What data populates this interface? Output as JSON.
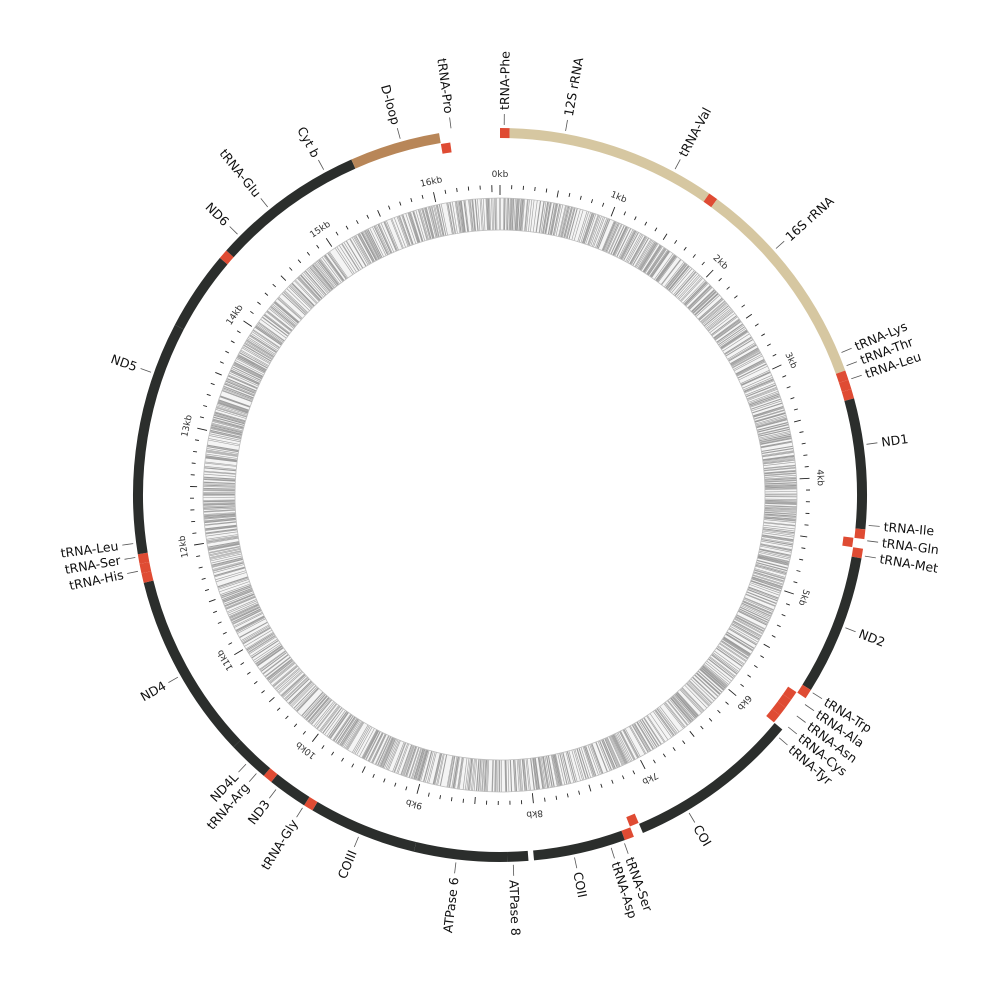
{
  "genome": {
    "length_kb": 16.57,
    "colors": {
      "protein": "#2b2e2c",
      "rrna": "#d6c7a1",
      "dloop": "#b88658",
      "trna": "#df4b33",
      "leader": "#555555",
      "tick": "#222222",
      "track": "#bdbdbd"
    },
    "tick_labels": [
      "0kb",
      "1kb",
      "2kb",
      "3kb",
      "4kb",
      "5kb",
      "6kb",
      "7kb",
      "8kb",
      "9kb",
      "10kb",
      "11kb",
      "12kb",
      "13kb",
      "14kb",
      "15kb",
      "16kb"
    ],
    "features": [
      {
        "name": "tRNA-Phe",
        "type": "trna",
        "strand": "outer",
        "start": 0.0,
        "end": 0.07,
        "label_pos": 0.03
      },
      {
        "name": "12S rRNA",
        "type": "rrna",
        "strand": "outer",
        "start": 0.07,
        "end": 1.6,
        "label_pos": 0.47
      },
      {
        "name": "tRNA-Val",
        "type": "trna",
        "strand": "outer",
        "start": 1.6,
        "end": 1.67,
        "label_pos": 1.3
      },
      {
        "name": "16S rRNA",
        "type": "rrna",
        "strand": "outer",
        "start": 1.67,
        "end": 3.23,
        "label_pos": 2.22
      },
      {
        "name": "tRNA-Lys",
        "type": "trna",
        "strand": "outer",
        "start": 3.23,
        "end": 3.3,
        "label_pos": 3.1
      },
      {
        "name": "tRNA-Thr",
        "type": "trna",
        "strand": "outer",
        "start": 3.3,
        "end": 3.37,
        "label_pos": 3.2
      },
      {
        "name": "tRNA-Leu",
        "type": "trna",
        "strand": "outer",
        "start": 3.37,
        "end": 3.44,
        "label_pos": 3.3
      },
      {
        "name": "ND1",
        "type": "protein",
        "strand": "outer",
        "start": 3.44,
        "end": 4.39,
        "label_pos": 3.78
      },
      {
        "name": "tRNA-Ile",
        "type": "trna",
        "strand": "outer",
        "start": 4.39,
        "end": 4.46,
        "label_pos": 4.36
      },
      {
        "name": "tRNA-Gln",
        "type": "trna",
        "strand": "inner",
        "start": 4.46,
        "end": 4.53,
        "label_pos": 4.47
      },
      {
        "name": "tRNA-Met",
        "type": "trna",
        "strand": "outer",
        "start": 4.53,
        "end": 4.6,
        "label_pos": 4.58
      },
      {
        "name": "ND2",
        "type": "protein",
        "strand": "outer",
        "start": 4.6,
        "end": 5.62,
        "label_pos": 5.11
      },
      {
        "name": "tRNA-Trp",
        "type": "trna",
        "strand": "outer",
        "start": 5.62,
        "end": 5.69,
        "label_pos": 5.63
      },
      {
        "name": "tRNA-Ala",
        "type": "trna",
        "strand": "inner",
        "start": 5.69,
        "end": 5.76,
        "label_pos": 5.73
      },
      {
        "name": "tRNA-Asn",
        "type": "trna",
        "strand": "inner",
        "start": 5.76,
        "end": 5.83,
        "label_pos": 5.83
      },
      {
        "name": "tRNA-Cys",
        "type": "trna",
        "strand": "inner",
        "start": 5.83,
        "end": 5.9,
        "label_pos": 5.93
      },
      {
        "name": "tRNA-Tyr",
        "type": "trna",
        "strand": "inner",
        "start": 5.9,
        "end": 5.97,
        "label_pos": 6.03
      },
      {
        "name": "COI",
        "type": "protein",
        "strand": "outer",
        "start": 5.97,
        "end": 7.23,
        "label_pos": 6.87
      },
      {
        "name": "tRNA-Ser",
        "type": "trna",
        "strand": "inner",
        "start": 7.23,
        "end": 7.3,
        "label_pos": 7.38
      },
      {
        "name": "tRNA-Asp",
        "type": "trna",
        "strand": "outer",
        "start": 7.3,
        "end": 7.37,
        "label_pos": 7.48
      },
      {
        "name": "COII",
        "type": "protein",
        "strand": "outer",
        "start": 7.37,
        "end": 8.04,
        "label_pos": 7.75
      },
      {
        "name": "ATPase 8",
        "type": "protein",
        "strand": "outer",
        "start": 8.08,
        "end": 8.23,
        "label_pos": 8.19
      },
      {
        "name": "ATPase 6",
        "type": "protein",
        "strand": "outer",
        "start": 8.23,
        "end": 8.91,
        "label_pos": 8.6
      },
      {
        "name": "COIII",
        "type": "protein",
        "strand": "outer",
        "start": 8.91,
        "end": 9.7,
        "label_pos": 9.32
      },
      {
        "name": "tRNA-Gly",
        "type": "trna",
        "strand": "outer",
        "start": 9.7,
        "end": 9.77,
        "label_pos": 9.77
      },
      {
        "name": "ND3",
        "type": "protein",
        "strand": "outer",
        "start": 9.77,
        "end": 10.06,
        "label_pos": 10.0
      },
      {
        "name": "tRNA-Arg",
        "type": "trna",
        "strand": "outer",
        "start": 10.06,
        "end": 10.13,
        "label_pos": 10.18
      },
      {
        "name": "ND4L",
        "type": "protein",
        "strand": "outer",
        "start": 10.13,
        "end": 10.43,
        "label_pos": 10.28
      },
      {
        "name": "ND4",
        "type": "protein",
        "strand": "outer",
        "start": 10.43,
        "end": 11.79,
        "label_pos": 11.07
      },
      {
        "name": "tRNA-His",
        "type": "trna",
        "strand": "outer",
        "start": 11.79,
        "end": 11.86,
        "label_pos": 11.88
      },
      {
        "name": "tRNA-Ser",
        "type": "trna",
        "strand": "outer",
        "start": 11.86,
        "end": 11.93,
        "label_pos": 11.98
      },
      {
        "name": "tRNA-Leu",
        "type": "trna",
        "strand": "outer",
        "start": 11.93,
        "end": 12.0,
        "label_pos": 12.08
      },
      {
        "name": "ND5",
        "type": "protein",
        "strand": "outer",
        "start": 12.0,
        "end": 13.7,
        "label_pos": 13.32
      },
      {
        "name": "ND6",
        "type": "protein",
        "strand": "outer",
        "start": 13.7,
        "end": 14.28,
        "label_pos": 14.49
      },
      {
        "name": "tRNA-Glu",
        "type": "trna",
        "strand": "outer",
        "start": 14.28,
        "end": 14.35,
        "label_pos": 14.78
      },
      {
        "name": "Cyt b",
        "type": "protein",
        "strand": "outer",
        "start": 14.35,
        "end": 15.47,
        "label_pos": 15.26
      },
      {
        "name": "D-loop",
        "type": "dloop",
        "strand": "outer",
        "start": 15.47,
        "end": 16.13,
        "label_pos": 15.85
      },
      {
        "name": "tRNA-Pro",
        "type": "trna",
        "strand": "inner",
        "start": 16.13,
        "end": 16.2,
        "label_pos": 16.22
      }
    ]
  }
}
